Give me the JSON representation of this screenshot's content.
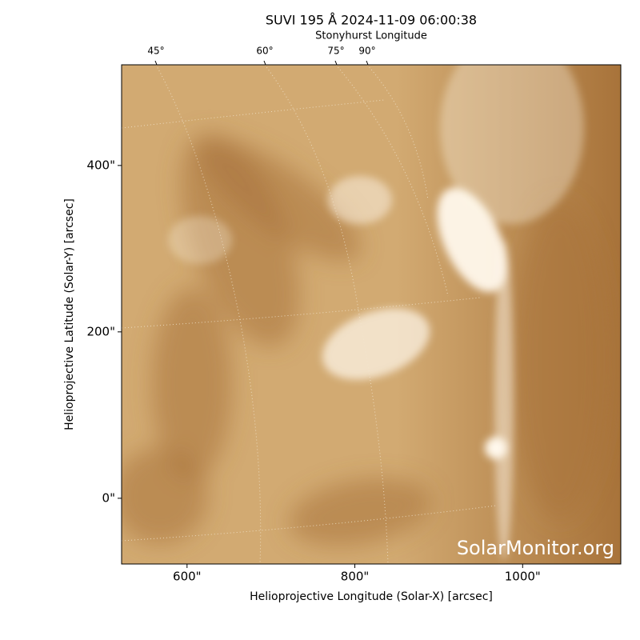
{
  "chart_data": {
    "type": "image",
    "title": "SUVI 195 Å 2024-11-09 06:00:38",
    "xlabel": "Helioprojective Longitude (Solar-X) [arcsec]",
    "ylabel": "Helioprojective Latitude (Solar-Y) [arcsec]",
    "top_axis_label": "Stonyhurst Longitude",
    "top_ticks": [
      "45°",
      "60°",
      "75°",
      "90°"
    ],
    "watermark": "SolarMonitor.org",
    "xlim": [
      522,
      1117
    ],
    "ylim": [
      -79,
      521
    ],
    "xticks": [
      {
        "value": 600,
        "label": "600\""
      },
      {
        "value": 800,
        "label": "800\""
      },
      {
        "value": 1000,
        "label": "1000\""
      }
    ],
    "yticks": [
      {
        "value": 0,
        "label": "0\""
      },
      {
        "value": 200,
        "label": "200\""
      },
      {
        "value": 400,
        "label": "400\""
      }
    ],
    "colormap": [
      "#a8733a",
      "#d2aa72",
      "#fff8ec"
    ]
  }
}
